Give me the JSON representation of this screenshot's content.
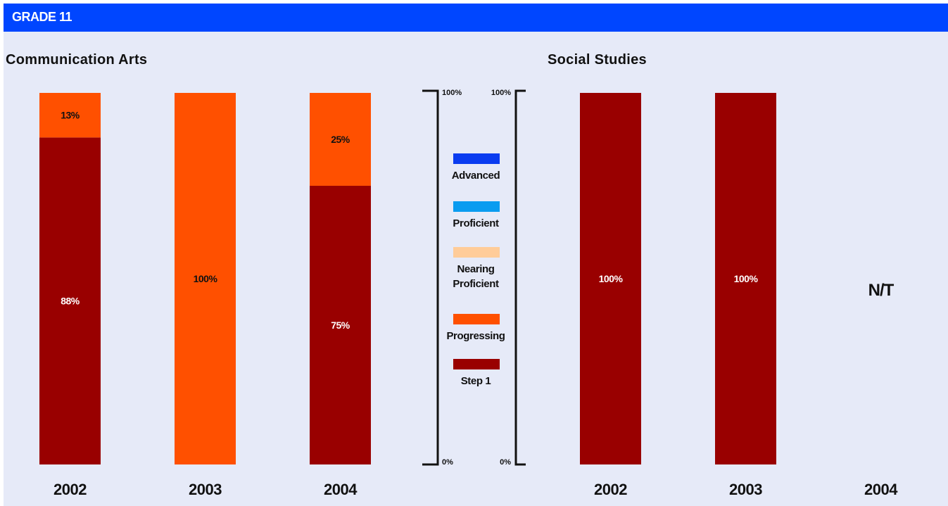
{
  "header": {
    "title": "GRADE 11"
  },
  "colors": {
    "banner": "#0046ff",
    "background": "#e6eaf8",
    "Advanced": "#0a3cf0",
    "Proficient": "#0a9cf0",
    "Nearing Proficient": "#ffcc99",
    "Progressing": "#ff5000",
    "Step 1": "#990000"
  },
  "axis": {
    "top_label": "100%",
    "bottom_label": "0%"
  },
  "legend": [
    {
      "name": "Advanced",
      "lines": [
        "Advanced"
      ]
    },
    {
      "name": "Proficient",
      "lines": [
        "Proficient"
      ]
    },
    {
      "name": "Nearing Proficient",
      "lines": [
        "Nearing",
        "Proficient"
      ]
    },
    {
      "name": "Progressing",
      "lines": [
        "Progressing"
      ]
    },
    {
      "name": "Step 1",
      "lines": [
        "Step 1"
      ]
    }
  ],
  "chart_data": [
    {
      "type": "bar",
      "stacked": true,
      "title": "Communication Arts",
      "categories": [
        "2002",
        "2003",
        "2004"
      ],
      "ylim": [
        0,
        100
      ],
      "series": [
        {
          "name": "Step 1",
          "values": [
            88,
            0,
            75
          ]
        },
        {
          "name": "Progressing",
          "values": [
            13,
            100,
            25
          ]
        }
      ]
    },
    {
      "type": "bar",
      "stacked": true,
      "title": "Social Studies",
      "categories": [
        "2002",
        "2003",
        "2004"
      ],
      "ylim": [
        0,
        100
      ],
      "series": [
        {
          "name": "Step 1",
          "values": [
            100,
            100,
            null
          ]
        }
      ],
      "not_tested": {
        "2004": "N/T"
      }
    }
  ]
}
